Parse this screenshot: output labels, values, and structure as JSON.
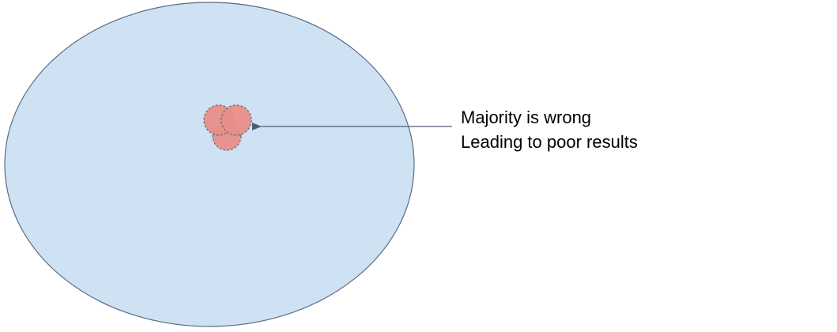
{
  "annotation": {
    "line1": "Majority is wrong",
    "line2": "Leading to poor results"
  },
  "colors": {
    "population_fill": "#cfe2f3",
    "population_stroke": "#5a6b85",
    "cluster_fill": "#e88e8a",
    "cluster_stroke": "#6b6b6b",
    "arrow": "#4f5d75",
    "text": "#000000"
  }
}
